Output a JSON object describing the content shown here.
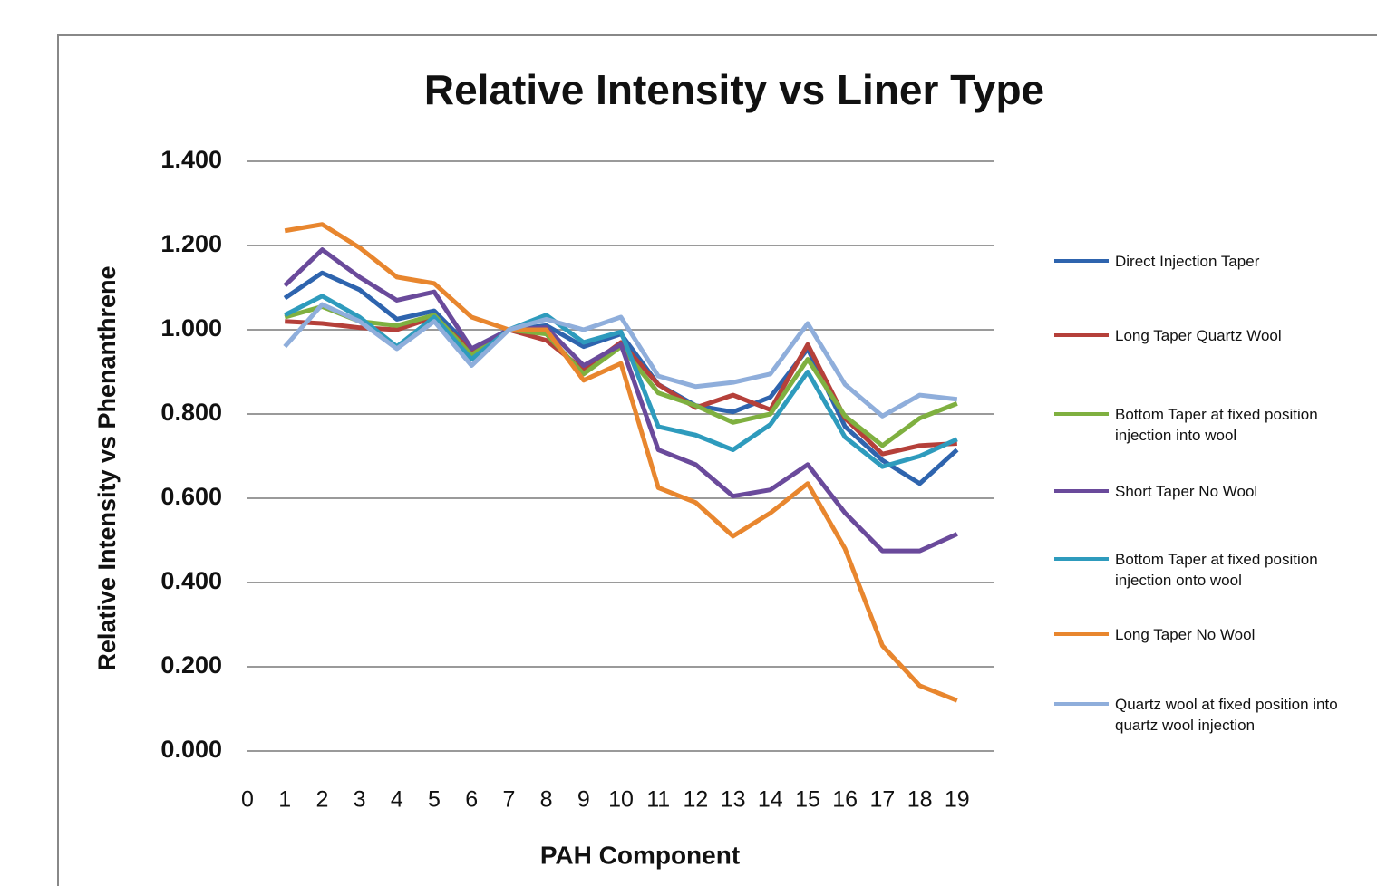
{
  "chart_data": {
    "type": "line",
    "title": "Relative Intensity vs Liner Type",
    "x_label": "PAH Component",
    "y_label": "Relative Intensity vs Phenanthrene",
    "x": [
      1,
      2,
      3,
      4,
      5,
      6,
      7,
      8,
      9,
      10,
      11,
      12,
      13,
      14,
      15,
      16,
      17,
      18,
      19
    ],
    "xlim": [
      0,
      20
    ],
    "xticks": [
      0,
      1,
      2,
      3,
      4,
      5,
      6,
      7,
      8,
      9,
      10,
      11,
      12,
      13,
      14,
      15,
      16,
      17,
      18,
      19
    ],
    "ylim": [
      0,
      1.4
    ],
    "yticks": [
      {
        "value": 0,
        "label": "0.000"
      },
      {
        "value": 0.2,
        "label": "0.200"
      },
      {
        "value": 0.4,
        "label": "0.400"
      },
      {
        "value": 0.6,
        "label": "0.600"
      },
      {
        "value": 0.8,
        "label": "0.800"
      },
      {
        "value": 1.0,
        "label": "1.000"
      },
      {
        "value": 1.2,
        "label": "1.200"
      },
      {
        "value": 1.4,
        "label": "1.400"
      }
    ],
    "grid": true,
    "legend": "right",
    "series": [
      {
        "name": "Direct Injection Taper",
        "color": "#2e64ae",
        "values": [
          1.075,
          1.135,
          1.095,
          1.025,
          1.045,
          0.955,
          1.0,
          1.01,
          0.96,
          0.99,
          0.87,
          0.82,
          0.805,
          0.84,
          0.955,
          0.77,
          0.69,
          0.635,
          0.715
        ]
      },
      {
        "name": "Long Taper Quartz Wool",
        "color": "#b5403a",
        "values": [
          1.02,
          1.015,
          1.005,
          1.0,
          1.03,
          0.95,
          1.0,
          0.975,
          0.905,
          0.97,
          0.87,
          0.815,
          0.845,
          0.81,
          0.965,
          0.79,
          0.705,
          0.725,
          0.73
        ]
      },
      {
        "name": "Bottom Taper at fixed position injection into wool",
        "color": "#7fb040",
        "values": [
          1.03,
          1.055,
          1.02,
          1.01,
          1.035,
          0.94,
          1.0,
          0.99,
          0.895,
          0.96,
          0.85,
          0.82,
          0.78,
          0.8,
          0.93,
          0.795,
          0.725,
          0.79,
          0.825
        ]
      },
      {
        "name": "Short Taper No Wool",
        "color": "#6a4a9b",
        "values": [
          1.105,
          1.19,
          1.125,
          1.07,
          1.09,
          0.955,
          1.0,
          1.005,
          0.915,
          0.965,
          0.715,
          0.68,
          0.605,
          0.62,
          0.68,
          0.565,
          0.475,
          0.475,
          0.515
        ]
      },
      {
        "name": "Bottom Taper at fixed position injection onto wool",
        "color": "#2e9bbd",
        "values": [
          1.035,
          1.08,
          1.03,
          0.96,
          1.03,
          0.93,
          1.0,
          1.035,
          0.97,
          0.995,
          0.77,
          0.75,
          0.715,
          0.775,
          0.9,
          0.745,
          0.675,
          0.7,
          0.74
        ]
      },
      {
        "name": "Long Taper No Wool",
        "color": "#e8862e",
        "values": [
          1.235,
          1.25,
          1.195,
          1.125,
          1.11,
          1.03,
          1.0,
          1.0,
          0.88,
          0.92,
          0.625,
          0.59,
          0.51,
          0.565,
          0.635,
          0.48,
          0.25,
          0.155,
          0.12
        ]
      },
      {
        "name": "Quartz wool at fixed position into quartz wool injection",
        "color": "#8faedb",
        "values": [
          0.96,
          1.06,
          1.02,
          0.955,
          1.02,
          0.915,
          1.0,
          1.025,
          1.0,
          1.03,
          0.89,
          0.865,
          0.875,
          0.895,
          1.015,
          0.87,
          0.795,
          0.845,
          0.835
        ]
      }
    ]
  }
}
